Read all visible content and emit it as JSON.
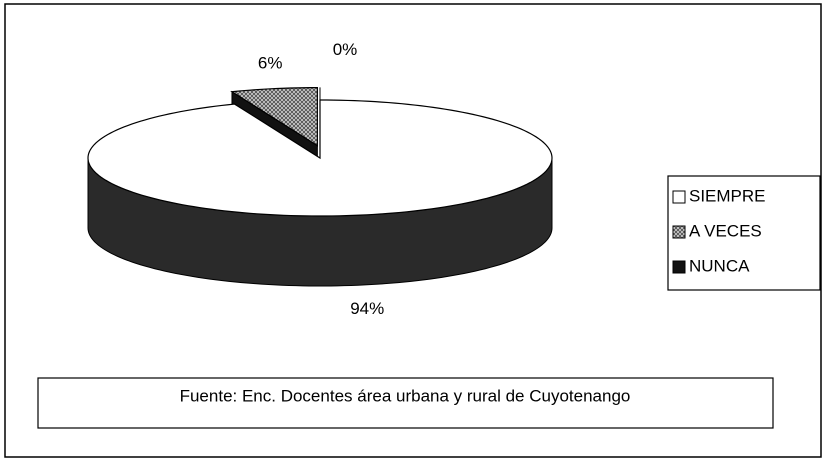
{
  "chart_data": {
    "type": "pie",
    "categories": [
      "SIEMPRE",
      "A VECES",
      "NUNCA"
    ],
    "values": [
      94,
      6,
      0
    ],
    "value_labels": [
      "94%",
      "6%",
      "0%"
    ],
    "colors": [
      "#ffffff",
      "#9a9a9a",
      "#111111"
    ],
    "legend": "right",
    "source": "Fuente: Enc. Docentes área urbana y rural de Cuyotenango"
  }
}
